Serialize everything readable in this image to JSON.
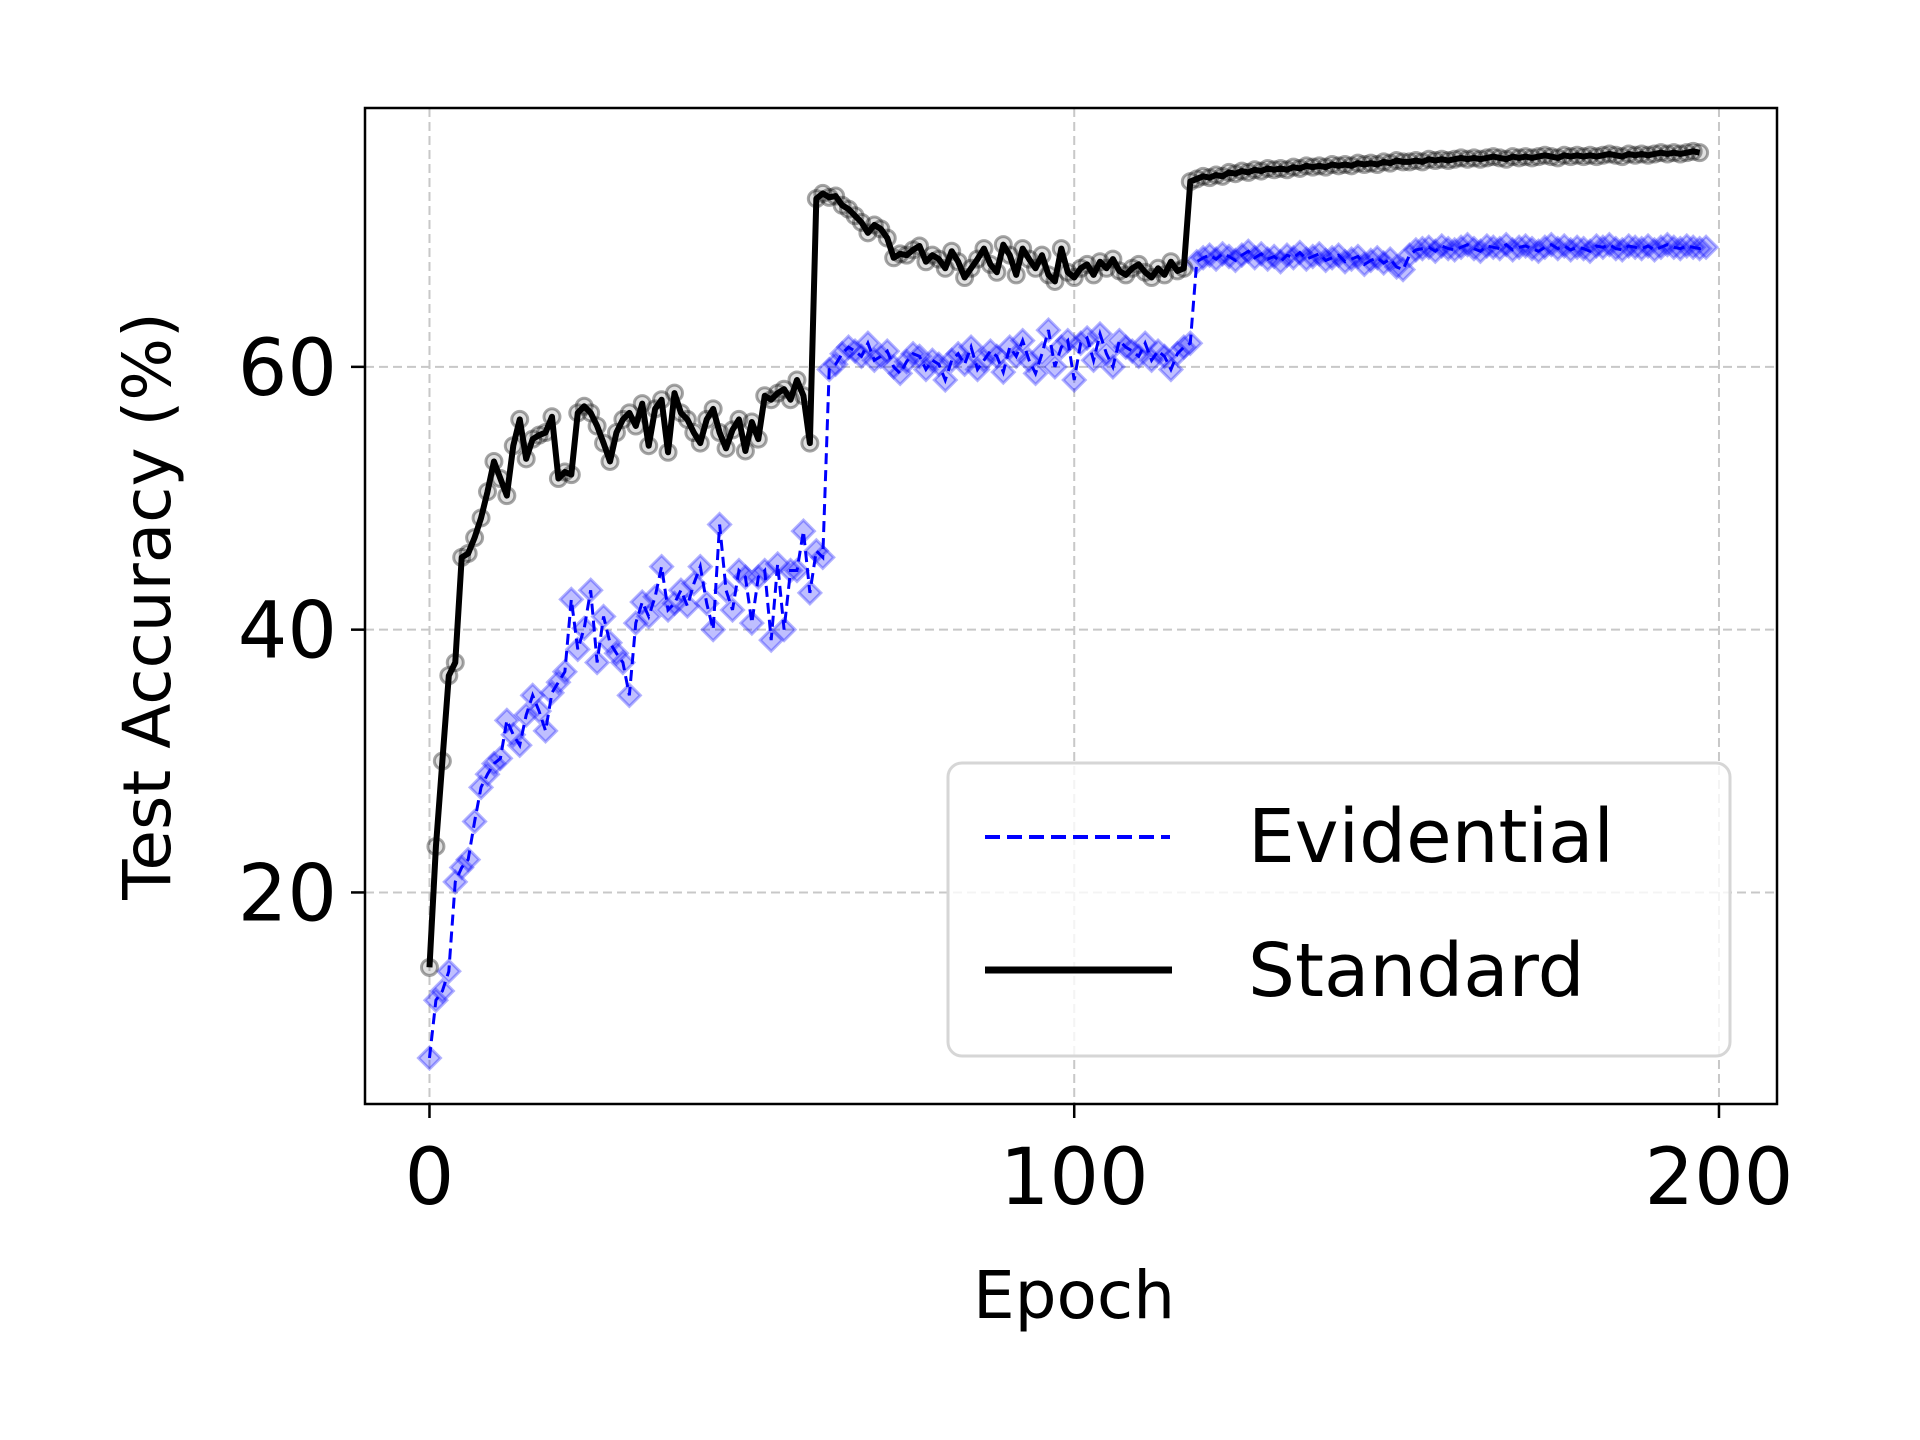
{
  "chart_data": {
    "type": "line",
    "title": "",
    "xlabel": "Epoch",
    "ylabel": "Test Accuracy (%)",
    "xlim": [
      -10,
      209
    ],
    "ylim": [
      3.9,
      79.7
    ],
    "xticks": [
      0,
      100,
      200
    ],
    "xtick_labels": [
      "0",
      "100",
      "200"
    ],
    "yticks": [
      20,
      40,
      60
    ],
    "ytick_labels": [
      "20",
      "40",
      "60"
    ],
    "grid": true,
    "legend_position": "lower right",
    "x": "epochs 0..199",
    "series": [
      {
        "name": "Evidential",
        "color": "#0000ff",
        "linestyle": "dashed",
        "marker": "diamond",
        "values": [
          7.4,
          11.8,
          12.5,
          14.0,
          20.8,
          21.9,
          22.5,
          25.4,
          28.0,
          29.0,
          29.8,
          30.2,
          33.1,
          32.0,
          31.2,
          33.5,
          35.0,
          33.8,
          32.3,
          35.2,
          36.0,
          36.8,
          42.3,
          38.5,
          40.1,
          43.0,
          37.5,
          41.0,
          39.0,
          38.2,
          37.5,
          35.0,
          40.5,
          42.1,
          41.0,
          42.5,
          44.8,
          41.5,
          42.0,
          43.0,
          41.8,
          43.5,
          44.8,
          42.0,
          40.0,
          48.0,
          43.0,
          41.5,
          44.5,
          44.0,
          40.5,
          44.0,
          44.5,
          39.2,
          45.0,
          40.0,
          44.5,
          44.5,
          47.5,
          42.8,
          46.0,
          45.5,
          59.8,
          60.2,
          61.0,
          61.5,
          61.2,
          60.8,
          61.8,
          60.5,
          60.8,
          61.2,
          60.0,
          59.5,
          60.4,
          61.0,
          60.8,
          59.8,
          60.5,
          60.2,
          59.0,
          60.5,
          61.0,
          60.2,
          61.5,
          59.8,
          60.5,
          61.2,
          60.8,
          59.6,
          61.5,
          60.8,
          62.0,
          60.5,
          59.5,
          61.0,
          62.8,
          60.0,
          61.5,
          62.0,
          59.0,
          61.8,
          62.2,
          60.5,
          62.5,
          61.0,
          60.0,
          62.0,
          61.5,
          61.2,
          60.8,
          61.8,
          60.5,
          61.2,
          60.8,
          59.8,
          61.0,
          61.5,
          61.8,
          68.0,
          68.3,
          68.5,
          68.2,
          68.6,
          68.4,
          68.1,
          68.5,
          68.8,
          68.3,
          68.6,
          68.2,
          68.4,
          68.0,
          68.5,
          68.3,
          68.7,
          68.2,
          68.4,
          68.6,
          68.1,
          68.3,
          68.5,
          68.0,
          68.2,
          68.4,
          67.8,
          68.1,
          68.3,
          67.9,
          68.2,
          67.6,
          67.4,
          68.5,
          68.9,
          69.0,
          69.1,
          68.8,
          69.2,
          69.0,
          68.9,
          69.1,
          69.3,
          69.0,
          68.8,
          69.2,
          69.1,
          69.0,
          69.3,
          68.9,
          69.1,
          69.2,
          69.0,
          68.8,
          69.1,
          69.3,
          69.0,
          69.2,
          68.9,
          69.1,
          69.0,
          68.8,
          69.2,
          69.1,
          69.3,
          69.0,
          68.9,
          69.2,
          69.1,
          69.0,
          69.2,
          68.9,
          69.1,
          69.3,
          69.1,
          69.0,
          69.2,
          69.1,
          69.0,
          69.1
        ]
      },
      {
        "name": "Standard",
        "color": "#000000",
        "linestyle": "solid",
        "marker": "circle",
        "values": [
          14.3,
          23.5,
          30.0,
          36.5,
          37.5,
          45.5,
          45.8,
          47.0,
          48.5,
          50.5,
          52.8,
          51.5,
          50.2,
          54.0,
          56.0,
          53.0,
          54.5,
          54.8,
          55.0,
          56.2,
          51.5,
          52.0,
          51.8,
          56.5,
          57.0,
          56.5,
          55.5,
          54.2,
          52.8,
          55.0,
          56.0,
          56.5,
          55.5,
          57.2,
          54.0,
          56.8,
          57.5,
          53.5,
          58.0,
          56.5,
          56.0,
          55.0,
          54.2,
          56.0,
          56.8,
          55.0,
          53.8,
          55.2,
          56.0,
          53.6,
          55.8,
          54.5,
          57.8,
          57.5,
          58.0,
          58.3,
          57.5,
          59.0,
          57.8,
          54.2,
          72.8,
          73.2,
          72.9,
          73.0,
          72.3,
          72.0,
          71.5,
          71.0,
          70.2,
          70.8,
          70.5,
          69.8,
          68.3,
          68.6,
          68.5,
          68.9,
          69.2,
          68.0,
          68.5,
          68.2,
          67.5,
          68.8,
          68.0,
          66.8,
          67.5,
          68.2,
          69.0,
          67.8,
          67.2,
          69.3,
          68.5,
          67.0,
          69.0,
          68.2,
          67.5,
          68.5,
          67.0,
          66.5,
          69.0,
          67.2,
          66.8,
          67.5,
          67.8,
          67.0,
          68.0,
          67.5,
          68.2,
          67.3,
          67.0,
          67.5,
          67.8,
          67.2,
          66.8,
          67.5,
          67.0,
          68.0,
          67.3,
          67.5,
          74.1,
          74.3,
          74.5,
          74.4,
          74.6,
          74.5,
          74.8,
          74.7,
          74.9,
          74.8,
          75.0,
          74.9,
          75.1,
          75.0,
          75.1,
          75.0,
          75.2,
          75.1,
          75.3,
          75.2,
          75.3,
          75.2,
          75.4,
          75.3,
          75.4,
          75.3,
          75.5,
          75.4,
          75.5,
          75.4,
          75.6,
          75.5,
          75.7,
          75.6,
          75.6,
          75.7,
          75.6,
          75.8,
          75.7,
          75.8,
          75.7,
          75.8,
          75.9,
          75.8,
          75.9,
          75.8,
          75.9,
          76.0,
          75.9,
          75.8,
          76.0,
          75.9,
          76.0,
          75.9,
          76.0,
          76.1,
          76.0,
          75.9,
          76.1,
          76.0,
          76.1,
          76.0,
          76.1,
          76.0,
          76.1,
          76.2,
          76.1,
          76.0,
          76.2,
          76.1,
          76.2,
          76.1,
          76.2,
          76.3,
          76.2,
          76.3,
          76.2,
          76.3,
          76.4,
          76.3
        ]
      }
    ]
  },
  "axes": {
    "xlabel": "Epoch",
    "ylabel": "Test Accuracy (%)",
    "xtick_labels": [
      "0",
      "100",
      "200"
    ],
    "ytick_labels": [
      "20",
      "40",
      "60"
    ]
  },
  "legend": {
    "items": [
      {
        "label": "Evidential",
        "color": "#0000ff",
        "style": "dashed"
      },
      {
        "label": "Standard",
        "color": "#000000",
        "style": "solid"
      }
    ]
  },
  "colors": {
    "evidential": "#0000ff",
    "evidential_marker_fill": "#0000ff",
    "standard": "#000000",
    "standard_marker_edge": "#000000",
    "grid": "#c8c8c8",
    "legend_border": "#d6d6d6"
  }
}
